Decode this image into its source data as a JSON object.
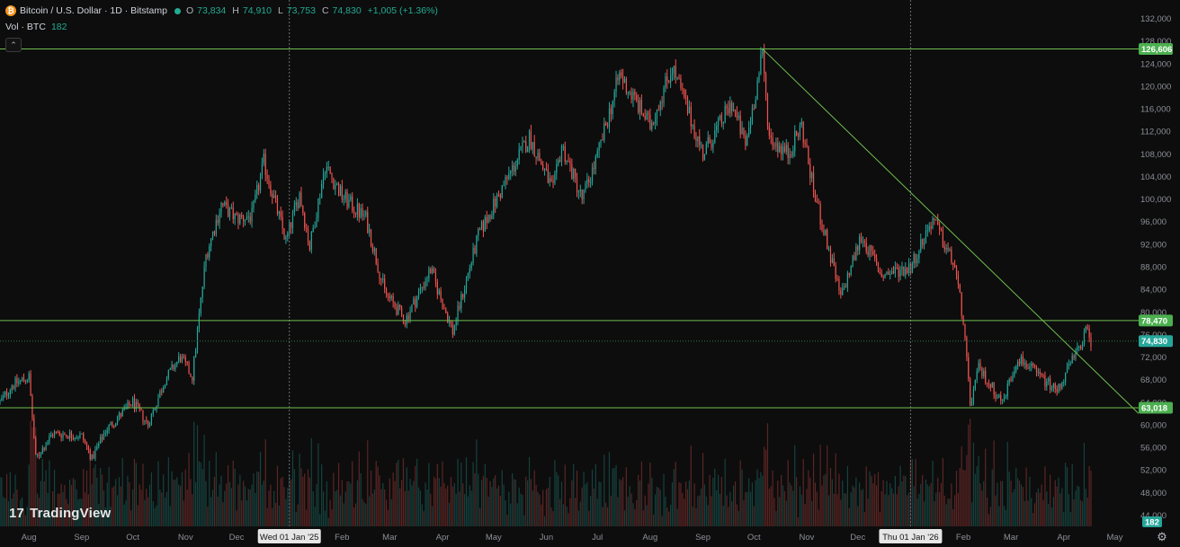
{
  "legend": {
    "logo_letter": "₿",
    "title": "Bitcoin / U.S. Dollar · 1D · Bitstamp",
    "o_label": "O",
    "o_value": "73,834",
    "h_label": "H",
    "h_value": "74,910",
    "l_label": "L",
    "l_value": "73,753",
    "c_label": "C",
    "c_value": "74,830",
    "change": "+1,005 (+1.36%)",
    "vol_label": "Vol · BTC",
    "vol_value": "182"
  },
  "collapse_glyph": "⌃",
  "branding": {
    "mark": "17",
    "name": "TradingView"
  },
  "colors": {
    "background": "#0d0d0d",
    "up": "#26a69a",
    "down": "#ef5350",
    "line": "#6fbf4f",
    "axis_text": "#8c8f98",
    "crosshair": "#6a6d78"
  },
  "chart_data": {
    "type": "candlestick",
    "symbol": "Bitcoin / U.S. Dollar",
    "interval": "1D",
    "exchange": "Bitstamp",
    "y_scale": "linear",
    "ylim": [
      42000,
      134000
    ],
    "y_ticks": [
      132000,
      128000,
      124000,
      120000,
      116000,
      112000,
      108000,
      104000,
      100000,
      96000,
      92000,
      88000,
      84000,
      80000,
      76000,
      72000,
      68000,
      64000,
      60000,
      56000,
      52000,
      48000,
      44000
    ],
    "y_tick_labels": [
      "132,000",
      "128,000",
      "124,000",
      "120,000",
      "116,000",
      "112,000",
      "108,000",
      "104,000",
      "100,000",
      "96,000",
      "92,000",
      "88,000",
      "84,000",
      "80,000",
      "76,000",
      "72,000",
      "68,000",
      "64,000",
      "60,000",
      "56,000",
      "52,000",
      "48,000",
      "44,000"
    ],
    "x_start": "2024-07-15",
    "x_end": "2026-05-15",
    "x_ticks": [
      {
        "label": "Aug",
        "date": "2024-08-01"
      },
      {
        "label": "Sep",
        "date": "2024-09-01"
      },
      {
        "label": "Oct",
        "date": "2024-10-01"
      },
      {
        "label": "Nov",
        "date": "2024-11-01"
      },
      {
        "label": "Dec",
        "date": "2024-12-01"
      },
      {
        "label": "Feb",
        "date": "2025-02-01"
      },
      {
        "label": "Mar",
        "date": "2025-03-01"
      },
      {
        "label": "Apr",
        "date": "2025-04-01"
      },
      {
        "label": "May",
        "date": "2025-05-01"
      },
      {
        "label": "Jun",
        "date": "2025-06-01"
      },
      {
        "label": "Jul",
        "date": "2025-07-01"
      },
      {
        "label": "Aug",
        "date": "2025-08-01"
      },
      {
        "label": "Sep",
        "date": "2025-09-01"
      },
      {
        "label": "Oct",
        "date": "2025-10-01"
      },
      {
        "label": "Nov",
        "date": "2025-11-01"
      },
      {
        "label": "Dec",
        "date": "2025-12-01"
      },
      {
        "label": "Feb",
        "date": "2026-02-01"
      },
      {
        "label": "Mar",
        "date": "2026-03-01"
      },
      {
        "label": "Apr",
        "date": "2026-04-01"
      },
      {
        "label": "May",
        "date": "2026-05-01"
      }
    ],
    "date_markers": [
      {
        "label": "Wed 01 Jan '25",
        "date": "2025-01-01"
      },
      {
        "label": "Thu 01 Jan '26",
        "date": "2026-01-01"
      }
    ],
    "price_path": [
      [
        "2024-07-15",
        64000
      ],
      [
        "2024-07-22",
        67000
      ],
      [
        "2024-08-01",
        68500
      ],
      [
        "2024-08-05",
        54000
      ],
      [
        "2024-08-15",
        58500
      ],
      [
        "2024-09-01",
        58000
      ],
      [
        "2024-09-07",
        54000
      ],
      [
        "2024-09-15",
        59000
      ],
      [
        "2024-10-01",
        64000
      ],
      [
        "2024-10-10",
        60000
      ],
      [
        "2024-10-20",
        68000
      ],
      [
        "2024-10-29",
        72000
      ],
      [
        "2024-11-05",
        68500
      ],
      [
        "2024-11-13",
        90000
      ],
      [
        "2024-11-22",
        99000
      ],
      [
        "2024-12-01",
        96500
      ],
      [
        "2024-12-10",
        97000
      ],
      [
        "2024-12-17",
        106500
      ],
      [
        "2024-12-30",
        92500
      ],
      [
        "2025-01-07",
        101000
      ],
      [
        "2025-01-13",
        91500
      ],
      [
        "2025-01-22",
        106000
      ],
      [
        "2025-02-01",
        100500
      ],
      [
        "2025-02-15",
        96500
      ],
      [
        "2025-02-26",
        83500
      ],
      [
        "2025-03-10",
        78500
      ],
      [
        "2025-03-25",
        87500
      ],
      [
        "2025-04-07",
        76500
      ],
      [
        "2025-04-14",
        84500
      ],
      [
        "2025-04-22",
        93500
      ],
      [
        "2025-05-08",
        103000
      ],
      [
        "2025-05-22",
        111000
      ],
      [
        "2025-06-05",
        101500
      ],
      [
        "2025-06-10",
        109500
      ],
      [
        "2025-06-22",
        100000
      ],
      [
        "2025-07-01",
        107500
      ],
      [
        "2025-07-14",
        122000
      ],
      [
        "2025-08-01",
        113000
      ],
      [
        "2025-08-14",
        123500
      ],
      [
        "2025-09-01",
        108000
      ],
      [
        "2025-09-18",
        117000
      ],
      [
        "2025-09-26",
        109500
      ],
      [
        "2025-10-06",
        125500
      ],
      [
        "2025-10-10",
        111000
      ],
      [
        "2025-10-21",
        108000
      ],
      [
        "2025-10-29",
        113000
      ],
      [
        "2025-11-05",
        101500
      ],
      [
        "2025-11-21",
        82500
      ],
      [
        "2025-12-03",
        93500
      ],
      [
        "2025-12-15",
        86500
      ],
      [
        "2026-01-01",
        88000
      ],
      [
        "2026-01-14",
        96500
      ],
      [
        "2026-01-27",
        88000
      ],
      [
        "2026-02-01",
        78500
      ],
      [
        "2026-02-05",
        63500
      ],
      [
        "2026-02-10",
        70000
      ],
      [
        "2026-02-24",
        64000
      ],
      [
        "2026-03-05",
        72000
      ],
      [
        "2026-03-20",
        68000
      ],
      [
        "2026-03-28",
        66000
      ],
      [
        "2026-04-08",
        72500
      ],
      [
        "2026-04-14",
        76500
      ],
      [
        "2026-04-17",
        74830
      ]
    ],
    "horizontal_levels": [
      {
        "value": 126606,
        "label": "126,606"
      },
      {
        "value": 78470,
        "label": "78,470"
      },
      {
        "value": 63018,
        "label": "63,018"
      }
    ],
    "current_price": {
      "value": 74830,
      "label": "74,830"
    },
    "trendline": {
      "from": [
        "2025-10-06",
        126606
      ],
      "to": [
        "2026-05-15",
        62000
      ]
    },
    "volume_label": "182",
    "volume_max_btc": 3500
  }
}
